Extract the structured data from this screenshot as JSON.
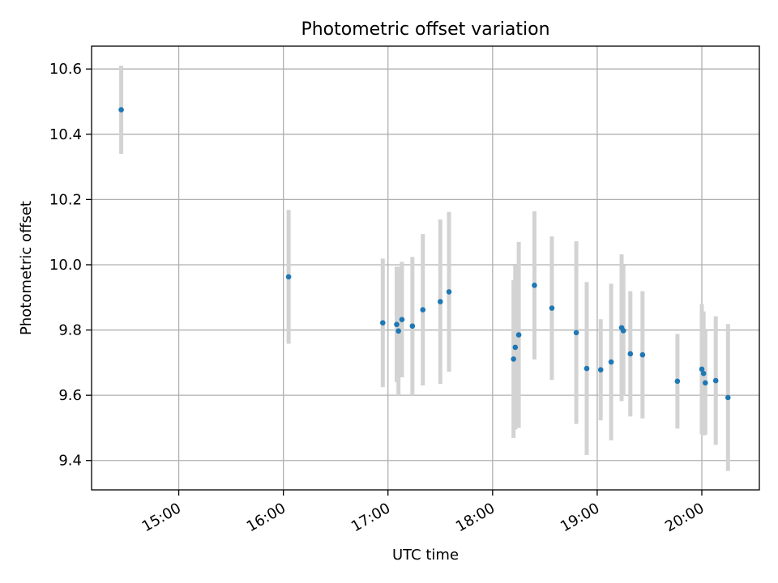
{
  "chart_data": {
    "type": "scatter",
    "title": "Photometric offset variation",
    "xlabel": "UTC time",
    "ylabel": "Photometric offset",
    "xlim": [
      "14:10",
      "20:33"
    ],
    "ylim": [
      9.31,
      10.67
    ],
    "x_ticks": [
      "15:00",
      "16:00",
      "17:00",
      "18:00",
      "19:00",
      "20:00"
    ],
    "y_ticks": [
      "9.4",
      "9.6",
      "9.8",
      "10.0",
      "10.2",
      "10.4",
      "10.6"
    ],
    "grid": true,
    "series": [
      {
        "marker": "point",
        "error_bars": true,
        "points": [
          {
            "x": "14:27",
            "y": 10.475,
            "yerr": 0.135
          },
          {
            "x": "16:03",
            "y": 9.963,
            "yerr": 0.205
          },
          {
            "x": "16:57",
            "y": 9.822,
            "yerr": 0.197
          },
          {
            "x": "17:05",
            "y": 9.817,
            "yerr": 0.177
          },
          {
            "x": "17:06",
            "y": 9.797,
            "yerr": 0.197
          },
          {
            "x": "17:08",
            "y": 9.832,
            "yerr": 0.177
          },
          {
            "x": "17:14",
            "y": 9.812,
            "yerr": 0.212
          },
          {
            "x": "17:20",
            "y": 9.862,
            "yerr": 0.232
          },
          {
            "x": "17:30",
            "y": 9.887,
            "yerr": 0.252
          },
          {
            "x": "17:35",
            "y": 9.917,
            "yerr": 0.245
          },
          {
            "x": "18:12",
            "y": 9.711,
            "yerr": 0.242
          },
          {
            "x": "18:13",
            "y": 9.747,
            "yerr": 0.252
          },
          {
            "x": "18:15",
            "y": 9.785,
            "yerr": 0.285
          },
          {
            "x": "18:24",
            "y": 9.937,
            "yerr": 0.227
          },
          {
            "x": "18:34",
            "y": 9.867,
            "yerr": 0.22
          },
          {
            "x": "18:48",
            "y": 9.792,
            "yerr": 0.28
          },
          {
            "x": "18:54",
            "y": 9.682,
            "yerr": 0.265
          },
          {
            "x": "19:02",
            "y": 9.678,
            "yerr": 0.155
          },
          {
            "x": "19:08",
            "y": 9.702,
            "yerr": 0.24
          },
          {
            "x": "19:14",
            "y": 9.807,
            "yerr": 0.225
          },
          {
            "x": "19:15",
            "y": 9.798,
            "yerr": 0.2
          },
          {
            "x": "19:19",
            "y": 9.727,
            "yerr": 0.192
          },
          {
            "x": "19:26",
            "y": 9.724,
            "yerr": 0.195
          },
          {
            "x": "19:46",
            "y": 9.643,
            "yerr": 0.145
          },
          {
            "x": "20:00",
            "y": 9.68,
            "yerr": 0.2
          },
          {
            "x": "20:01",
            "y": 9.667,
            "yerr": 0.19
          },
          {
            "x": "20:02",
            "y": 9.638,
            "yerr": 0.159
          },
          {
            "x": "20:08",
            "y": 9.645,
            "yerr": 0.197
          },
          {
            "x": "20:15",
            "y": 9.593,
            "yerr": 0.225
          }
        ]
      }
    ]
  }
}
